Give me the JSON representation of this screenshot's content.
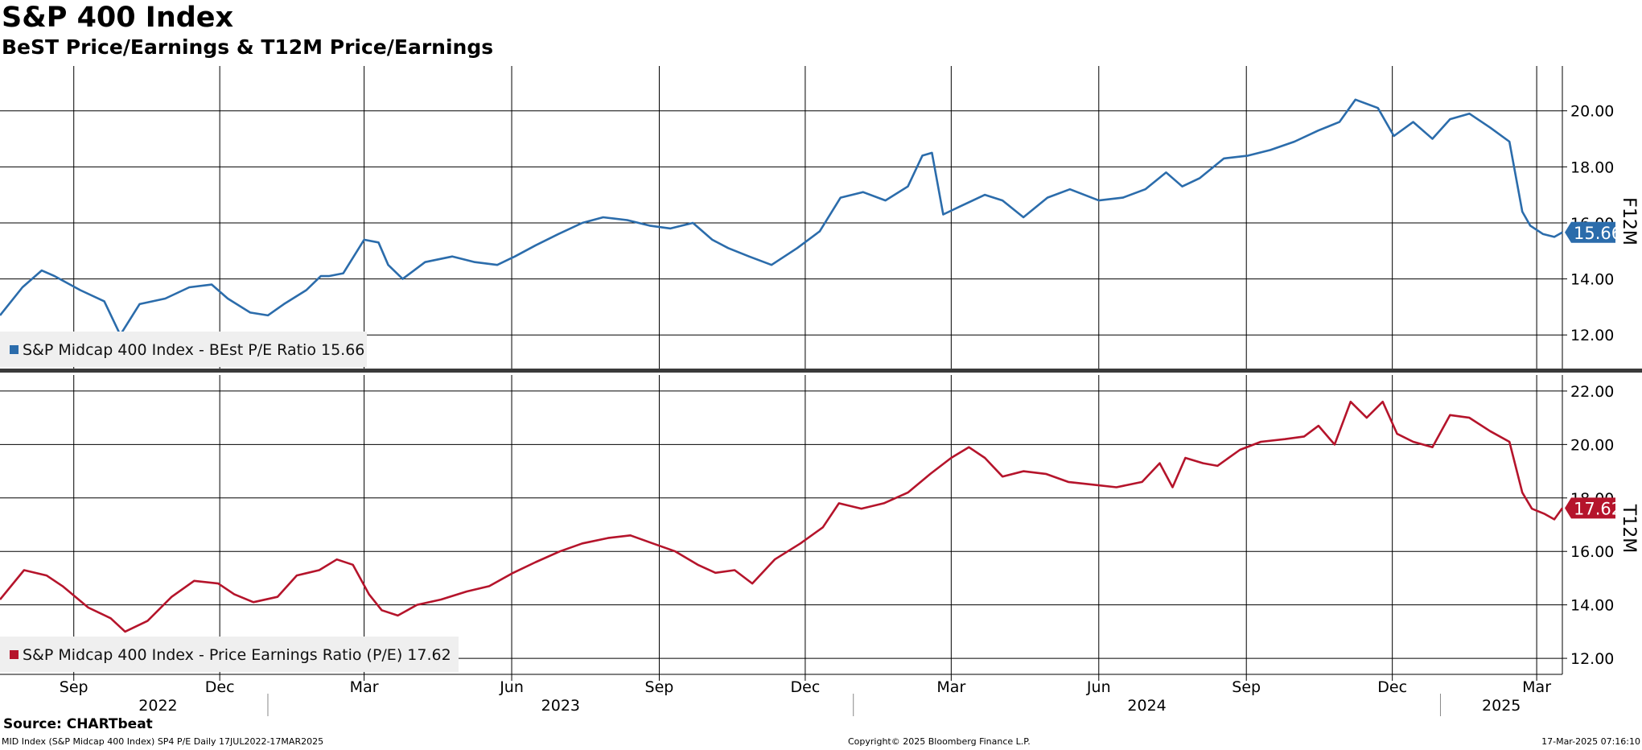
{
  "title": "S&P 400 Index",
  "subtitle": "BeST Price/Earnings & T12M Price/Earnings",
  "source": "Source: CHARTbeat",
  "footer": {
    "left": "MID Index (S&P Midcap 400 Index) SP4 P/E  Daily 17JUL2022-17MAR2025",
    "center": "Copyright© 2025 Bloomberg Finance L.P.",
    "right": "17-Mar-2025 07:16:10"
  },
  "colors": {
    "best": "#2b6cab",
    "t12m": "#b5142b",
    "grid": "#000000"
  },
  "chart_data": [
    {
      "type": "line",
      "panel": "top",
      "axis_label": "F12M",
      "yticks": [
        "12.00",
        "14.00",
        "16.00",
        "18.00",
        "20.00"
      ],
      "ylim": [
        10.8,
        21.6
      ],
      "xlim": [
        "2022-07-17",
        "2025-03-17"
      ],
      "last_value": "15.66",
      "series": [
        {
          "name": "S&P Midcap 400 Index - BEst P/E Ratio",
          "legend_value": "15.66",
          "x": [
            "2022-07-17",
            "2022-07-31",
            "2022-08-12",
            "2022-08-20",
            "2022-09-05",
            "2022-09-20",
            "2022-09-30",
            "2022-10-12",
            "2022-10-28",
            "2022-11-12",
            "2022-11-26",
            "2022-12-06",
            "2022-12-20",
            "2022-12-31",
            "2023-01-10",
            "2023-01-24",
            "2023-02-02",
            "2023-02-07",
            "2023-02-16",
            "2023-03-01",
            "2023-03-10",
            "2023-03-16",
            "2023-03-25",
            "2023-04-08",
            "2023-04-25",
            "2023-05-09",
            "2023-05-23",
            "2023-06-03",
            "2023-06-16",
            "2023-06-30",
            "2023-07-15",
            "2023-07-28",
            "2023-08-12",
            "2023-08-26",
            "2023-09-08",
            "2023-09-22",
            "2023-10-04",
            "2023-10-14",
            "2023-10-27",
            "2023-11-10",
            "2023-11-26",
            "2023-12-10",
            "2023-12-23",
            "2024-01-06",
            "2024-01-20",
            "2024-02-03",
            "2024-02-12",
            "2024-02-18",
            "2024-02-25",
            "2024-03-07",
            "2024-03-22",
            "2024-04-02",
            "2024-04-15",
            "2024-04-30",
            "2024-05-14",
            "2024-06-01",
            "2024-06-16",
            "2024-06-30",
            "2024-07-13",
            "2024-07-23",
            "2024-08-03",
            "2024-08-18",
            "2024-09-02",
            "2024-09-16",
            "2024-10-01",
            "2024-10-16",
            "2024-10-29",
            "2024-11-08",
            "2024-11-22",
            "2024-12-02",
            "2024-12-14",
            "2024-12-26",
            "2025-01-06",
            "2025-01-18",
            "2025-01-31",
            "2025-02-12",
            "2025-02-20",
            "2025-02-25",
            "2025-03-05",
            "2025-03-12",
            "2025-03-17"
          ],
          "values": [
            12.7,
            13.7,
            14.3,
            14.1,
            13.6,
            13.2,
            12.0,
            13.1,
            13.3,
            13.7,
            13.8,
            13.3,
            12.8,
            12.7,
            13.1,
            13.6,
            14.1,
            14.1,
            14.2,
            15.4,
            15.3,
            14.5,
            14.0,
            14.6,
            14.8,
            14.6,
            14.5,
            14.8,
            15.2,
            15.6,
            16.0,
            16.2,
            16.1,
            15.9,
            15.8,
            16.0,
            15.4,
            15.1,
            14.8,
            14.5,
            15.1,
            15.7,
            16.9,
            17.1,
            16.8,
            17.3,
            18.4,
            18.5,
            16.3,
            16.6,
            17.0,
            16.8,
            16.2,
            16.9,
            17.2,
            16.8,
            16.9,
            17.2,
            17.8,
            17.3,
            17.6,
            18.3,
            18.4,
            18.6,
            18.9,
            19.3,
            19.6,
            20.4,
            20.1,
            19.1,
            19.6,
            19.0,
            19.7,
            19.9,
            19.4,
            18.9,
            16.4,
            15.9,
            15.6,
            15.5,
            15.66
          ]
        }
      ]
    },
    {
      "type": "line",
      "panel": "bottom",
      "axis_label": "T12M",
      "yticks": [
        "12.00",
        "14.00",
        "16.00",
        "18.00",
        "20.00",
        "22.00"
      ],
      "ylim": [
        11.4,
        22.6
      ],
      "xlim": [
        "2022-07-17",
        "2025-03-17"
      ],
      "last_value": "17.62",
      "xticks": [
        "Sep",
        "Dec",
        "Mar",
        "Jun",
        "Sep",
        "Dec",
        "Mar",
        "Jun",
        "Sep",
        "Dec",
        "Mar"
      ],
      "years": [
        "2022",
        "2023",
        "2024",
        "2025"
      ],
      "series": [
        {
          "name": "S&P Midcap 400 Index - Price Earnings Ratio (P/E)",
          "legend_value": "17.62",
          "x": [
            "2022-07-17",
            "2022-08-01",
            "2022-08-15",
            "2022-08-25",
            "2022-09-10",
            "2022-09-24",
            "2022-10-03",
            "2022-10-17",
            "2022-11-01",
            "2022-11-15",
            "2022-11-30",
            "2022-12-10",
            "2022-12-22",
            "2023-01-06",
            "2023-01-18",
            "2023-02-01",
            "2023-02-12",
            "2023-02-22",
            "2023-03-04",
            "2023-03-12",
            "2023-03-22",
            "2023-04-03",
            "2023-04-18",
            "2023-05-04",
            "2023-05-18",
            "2023-06-02",
            "2023-06-16",
            "2023-07-01",
            "2023-07-15",
            "2023-07-31",
            "2023-08-14",
            "2023-08-28",
            "2023-09-11",
            "2023-09-25",
            "2023-10-06",
            "2023-10-18",
            "2023-10-29",
            "2023-11-12",
            "2023-11-28",
            "2023-12-12",
            "2023-12-22",
            "2024-01-05",
            "2024-01-19",
            "2024-02-03",
            "2024-02-17",
            "2024-03-01",
            "2024-03-12",
            "2024-03-22",
            "2024-04-02",
            "2024-04-15",
            "2024-04-29",
            "2024-05-13",
            "2024-05-28",
            "2024-06-12",
            "2024-06-28",
            "2024-07-09",
            "2024-07-17",
            "2024-07-25",
            "2024-08-05",
            "2024-08-14",
            "2024-08-28",
            "2024-09-10",
            "2024-09-25",
            "2024-10-07",
            "2024-10-16",
            "2024-10-26",
            "2024-11-05",
            "2024-11-15",
            "2024-11-25",
            "2024-12-04",
            "2024-12-14",
            "2024-12-26",
            "2025-01-06",
            "2025-01-18",
            "2025-01-31",
            "2025-02-12",
            "2025-02-20",
            "2025-02-26",
            "2025-03-06",
            "2025-03-12",
            "2025-03-17"
          ],
          "values": [
            14.2,
            15.3,
            15.1,
            14.7,
            13.9,
            13.5,
            13.0,
            13.4,
            14.3,
            14.9,
            14.8,
            14.4,
            14.1,
            14.3,
            15.1,
            15.3,
            15.7,
            15.5,
            14.4,
            13.8,
            13.6,
            14.0,
            14.2,
            14.5,
            14.7,
            15.2,
            15.6,
            16.0,
            16.3,
            16.5,
            16.6,
            16.3,
            16.0,
            15.5,
            15.2,
            15.3,
            14.8,
            15.7,
            16.3,
            16.9,
            17.8,
            17.6,
            17.8,
            18.2,
            18.9,
            19.5,
            19.9,
            19.5,
            18.8,
            19.0,
            18.9,
            18.6,
            18.5,
            18.4,
            18.6,
            19.3,
            18.4,
            19.5,
            19.3,
            19.2,
            19.8,
            20.1,
            20.2,
            20.3,
            20.7,
            20.0,
            21.6,
            21.0,
            21.6,
            20.4,
            20.1,
            19.9,
            21.1,
            21.0,
            20.5,
            20.1,
            18.2,
            17.6,
            17.4,
            17.2,
            17.62
          ]
        }
      ]
    }
  ]
}
